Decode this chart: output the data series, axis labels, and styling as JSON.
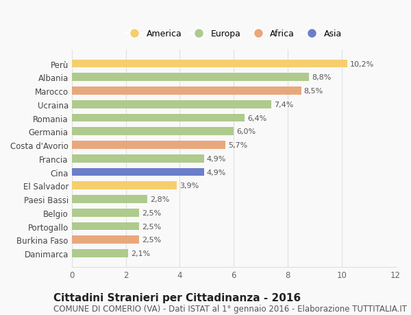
{
  "categories": [
    "Danimarca",
    "Burkina Faso",
    "Portogallo",
    "Belgio",
    "Paesi Bassi",
    "El Salvador",
    "Cina",
    "Francia",
    "Costa d'Avorio",
    "Germania",
    "Romania",
    "Ucraina",
    "Marocco",
    "Albania",
    "Perù"
  ],
  "values": [
    2.1,
    2.5,
    2.5,
    2.5,
    2.8,
    3.9,
    4.9,
    4.9,
    5.7,
    6.0,
    6.4,
    7.4,
    8.5,
    8.8,
    10.2
  ],
  "continents": [
    "Europa",
    "Africa",
    "Europa",
    "Europa",
    "Europa",
    "America",
    "Asia",
    "Europa",
    "Africa",
    "Europa",
    "Europa",
    "Europa",
    "Africa",
    "Europa",
    "America"
  ],
  "colors": {
    "America": "#F5CE6E",
    "Europa": "#AECA8C",
    "Africa": "#E8A87C",
    "Asia": "#6B7EC9"
  },
  "legend_order": [
    "America",
    "Europa",
    "Africa",
    "Asia"
  ],
  "xlim": [
    0,
    12
  ],
  "xticks": [
    0,
    2,
    4,
    6,
    8,
    10,
    12
  ],
  "title": "Cittadini Stranieri per Cittadinanza - 2016",
  "subtitle": "COMUNE DI COMERIO (VA) - Dati ISTAT al 1° gennaio 2016 - Elaborazione TUTTITALIA.IT",
  "title_fontsize": 11,
  "subtitle_fontsize": 8.5,
  "label_fontsize": 8,
  "tick_fontsize": 8.5,
  "background_color": "#f9f9f9",
  "grid_color": "#e0e0e0"
}
